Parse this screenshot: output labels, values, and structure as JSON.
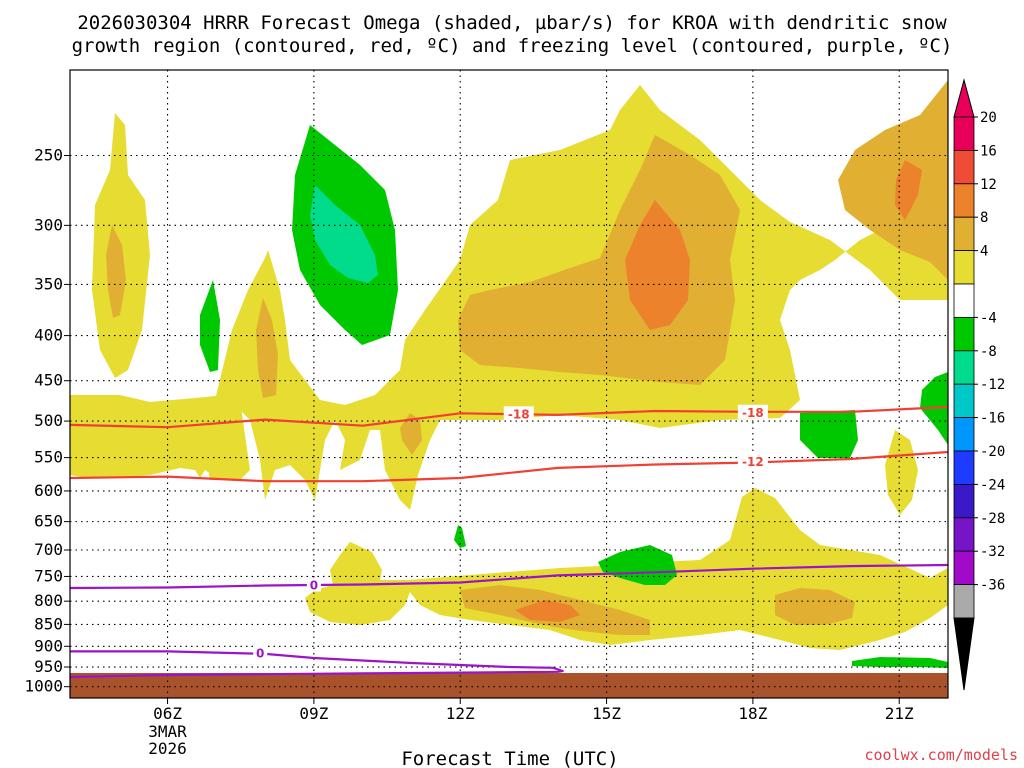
{
  "title_line1": "2026030304 HRRR Forecast Omega (shaded, µbar/s) for KROA with dendritic snow",
  "title_line2": "growth region (contoured, red, ºC) and freezing level (contoured, purple, ºC)",
  "watermark": "coolwx.com/models",
  "colors": {
    "rising_shades": [
      "#e6dc32",
      "#e1af32",
      "#ec822c",
      "#f04b37",
      "#e6005a"
    ],
    "sinking_shades": [
      "#00c800",
      "#00dc8c",
      "#00c8c8",
      "#0096ff",
      "#1e3cff",
      "#3c19c8",
      "#7814c8",
      "#a00ac8",
      "#aaaaaa",
      "#000000"
    ],
    "dgz_contour": "#f04033",
    "freezing_contour": "#9b14c8",
    "ground": "#a8532c"
  },
  "chart_data": {
    "type": "heatmap",
    "xlabel": "Forecast Time (UTC)",
    "ylabel": "",
    "xlim": [
      "2026-03-03 04Z",
      "2026-03-03 22Z"
    ],
    "ylim": [
      1030,
      200
    ],
    "y_scale": "log",
    "grid": true,
    "x_ticks": [
      {
        "time": "2026-03-03 06Z",
        "label": "06Z",
        "sub": [
          "3MAR",
          "2026"
        ]
      },
      {
        "time": "2026-03-03 09Z",
        "label": "09Z"
      },
      {
        "time": "2026-03-03 12Z",
        "label": "12Z"
      },
      {
        "time": "2026-03-03 15Z",
        "label": "15Z"
      },
      {
        "time": "2026-03-03 18Z",
        "label": "18Z"
      },
      {
        "time": "2026-03-03 21Z",
        "label": "21Z"
      }
    ],
    "y_ticks": [
      250,
      300,
      350,
      400,
      450,
      500,
      550,
      600,
      650,
      700,
      750,
      800,
      850,
      900,
      950,
      1000
    ],
    "colorbar": {
      "labels": [
        "20",
        "16",
        "12",
        "8",
        "4",
        "-4",
        "-8",
        "-12",
        "-16",
        "-20",
        "-24",
        "-28",
        "-32",
        "-36"
      ]
    },
    "contour_series": [
      {
        "name": "-18",
        "line": "dgz",
        "x": [
          4,
          6,
          8,
          10,
          12,
          14,
          16,
          18,
          20,
          22
        ],
        "y": [
          505,
          508,
          498,
          506,
          490,
          492,
          487,
          488,
          488,
          482
        ],
        "label_at": [
          [
            13.2,
            490
          ],
          [
            18,
            488
          ]
        ]
      },
      {
        "name": "-12",
        "line": "dgz",
        "x": [
          4,
          6,
          8,
          10,
          12,
          14,
          16,
          18,
          20,
          22
        ],
        "y": [
          580,
          578,
          585,
          585,
          580,
          565,
          560,
          557,
          552,
          542
        ],
        "label_at": [
          [
            18,
            555
          ]
        ]
      },
      {
        "name": "0",
        "line": "freezing",
        "x": [
          4,
          6,
          8,
          10,
          12,
          14,
          16,
          18,
          20,
          22
        ],
        "y": [
          773,
          772,
          768,
          766,
          762,
          748,
          742,
          735,
          730,
          728
        ],
        "label_at": [
          [
            9,
            766
          ]
        ]
      },
      {
        "name": "0",
        "line": "freezing",
        "x": [
          4,
          6,
          8,
          9,
          11,
          13,
          13.9,
          14.1,
          14,
          12,
          10,
          8,
          6,
          4
        ],
        "y": [
          912,
          912,
          918,
          928,
          940,
          950,
          952,
          960,
          962,
          964,
          966,
          968,
          970,
          975
        ],
        "label_at": [
          [
            7.9,
            915
          ]
        ]
      }
    ]
  }
}
